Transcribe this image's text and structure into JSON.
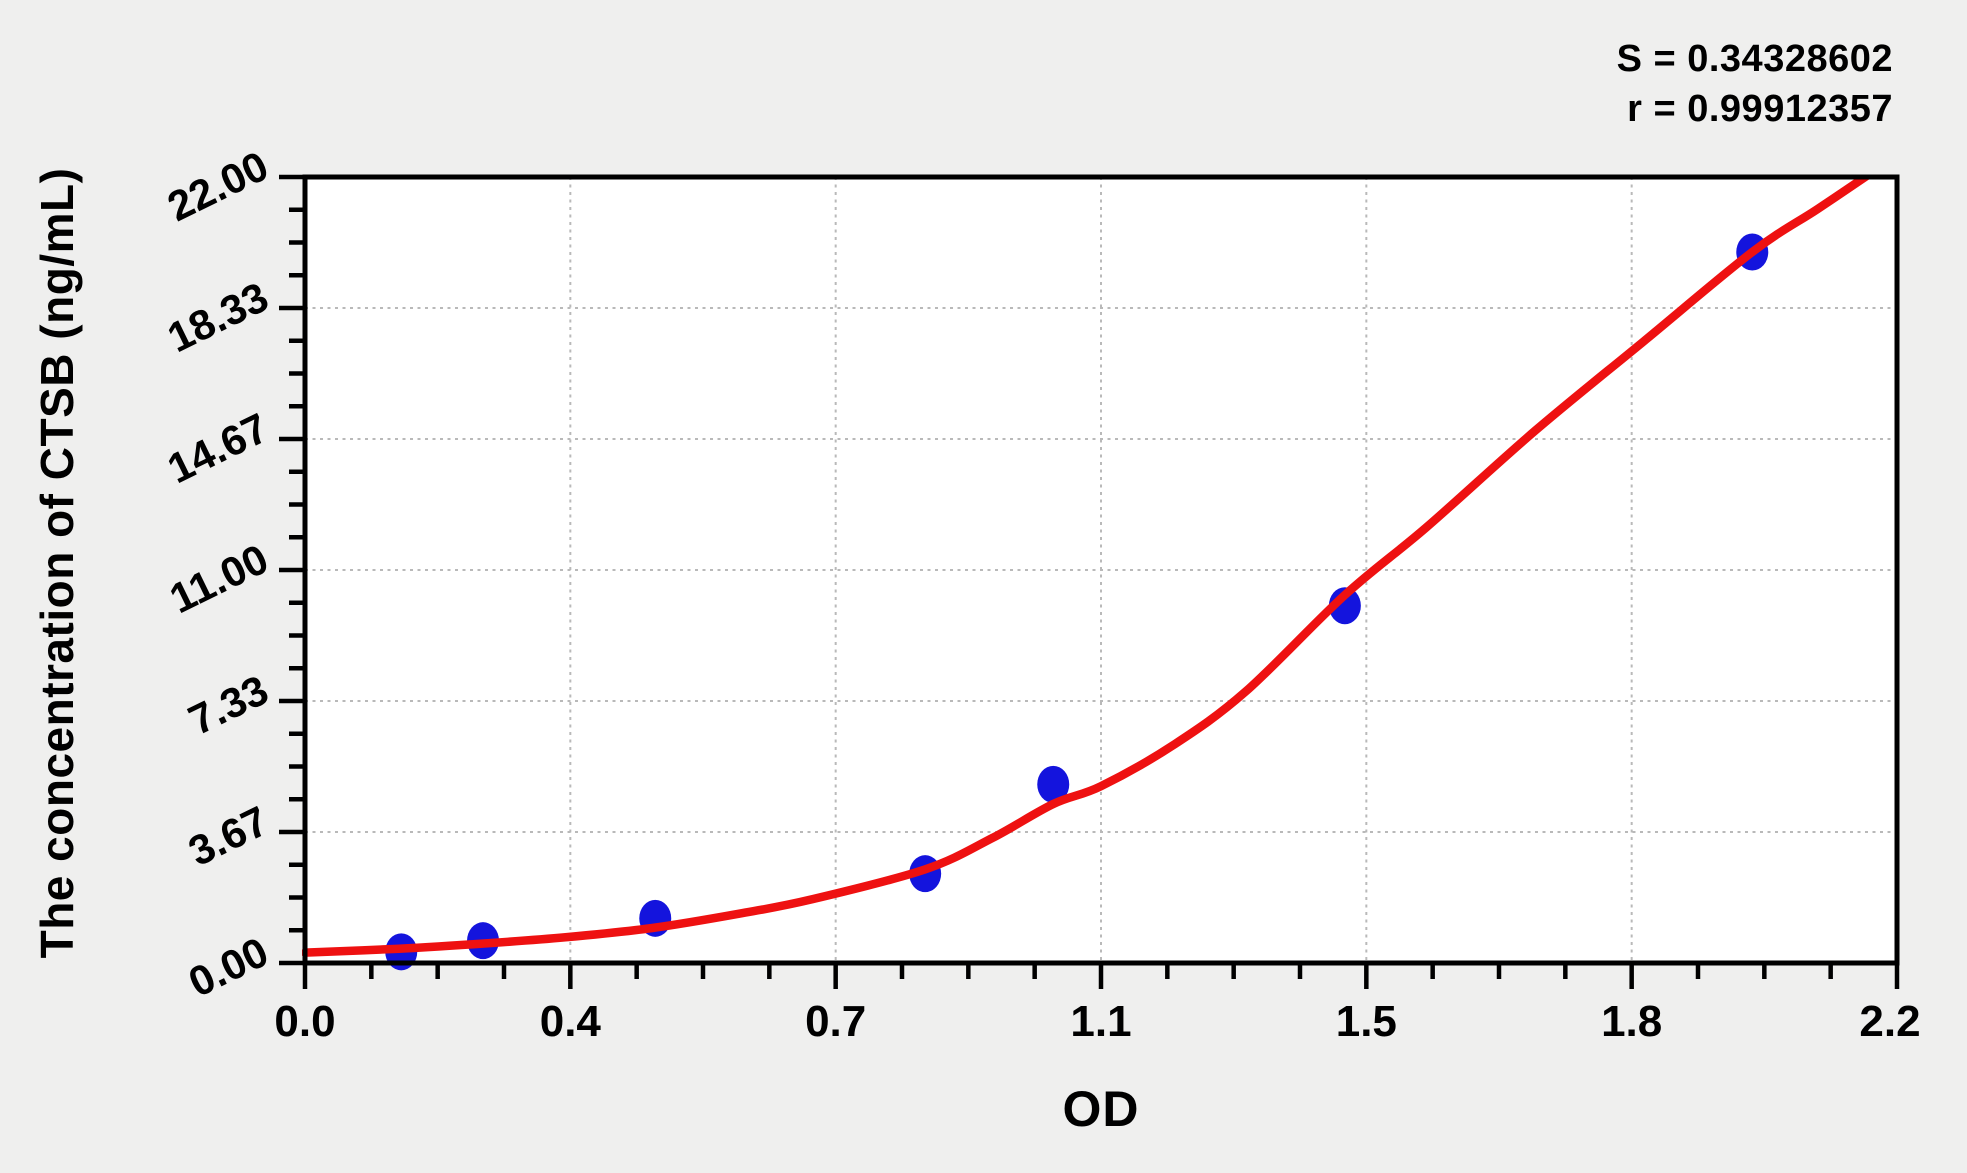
{
  "background_color": "#efefee",
  "plot_background_color": "#ffffff",
  "stats": {
    "s_line": "S = 0.34328602",
    "r_line": "r = 0.99912357"
  },
  "chart_data": {
    "type": "scatter",
    "title": "",
    "xlabel": "OD",
    "ylabel": "The concentration of CTSB (ng/mL)",
    "xlim": [
      0,
      2.2
    ],
    "ylim": [
      0,
      22
    ],
    "x_tick_labels": [
      "0.0",
      "0.4",
      "0.7",
      "1.1",
      "1.5",
      "1.8",
      "2.2"
    ],
    "y_tick_labels": [
      "0.00",
      "3.67",
      "7.33",
      "11.00",
      "14.67",
      "18.33",
      "22.00"
    ],
    "minor_divisions_per_major": 4,
    "grid": {
      "style": "dashed",
      "color": "#b9b9b9",
      "position": "major-ticks"
    },
    "legend": null,
    "fit_stats": {
      "S": "0.34328602",
      "r": "0.99912357"
    },
    "point_color": "#1414dd",
    "curve_color": "#ee1111",
    "points": [
      {
        "od": 0.133,
        "concentration": 0.3125
      },
      {
        "od": 0.246,
        "concentration": 0.625
      },
      {
        "od": 0.484,
        "concentration": 1.25
      },
      {
        "od": 0.857,
        "concentration": 2.5
      },
      {
        "od": 1.034,
        "concentration": 5.0
      },
      {
        "od": 1.437,
        "concentration": 10.0
      },
      {
        "od": 2.0,
        "concentration": 19.9
      }
    ],
    "curve_samples": [
      [
        0,
        0.29
      ],
      [
        0.13,
        0.4
      ],
      [
        0.25,
        0.55
      ],
      [
        0.36,
        0.72
      ],
      [
        0.48,
        0.98
      ],
      [
        0.6,
        1.38
      ],
      [
        0.7,
        1.78
      ],
      [
        0.857,
        2.62
      ],
      [
        0.95,
        3.5
      ],
      [
        1.034,
        4.45
      ],
      [
        1.1,
        4.95
      ],
      [
        1.2,
        6.1
      ],
      [
        1.3,
        7.6
      ],
      [
        1.437,
        10.3
      ],
      [
        1.55,
        12.2
      ],
      [
        1.7,
        14.9
      ],
      [
        1.85,
        17.4
      ],
      [
        2.0,
        19.9
      ],
      [
        2.09,
        21.1
      ],
      [
        2.167,
        22.15
      ]
    ]
  }
}
